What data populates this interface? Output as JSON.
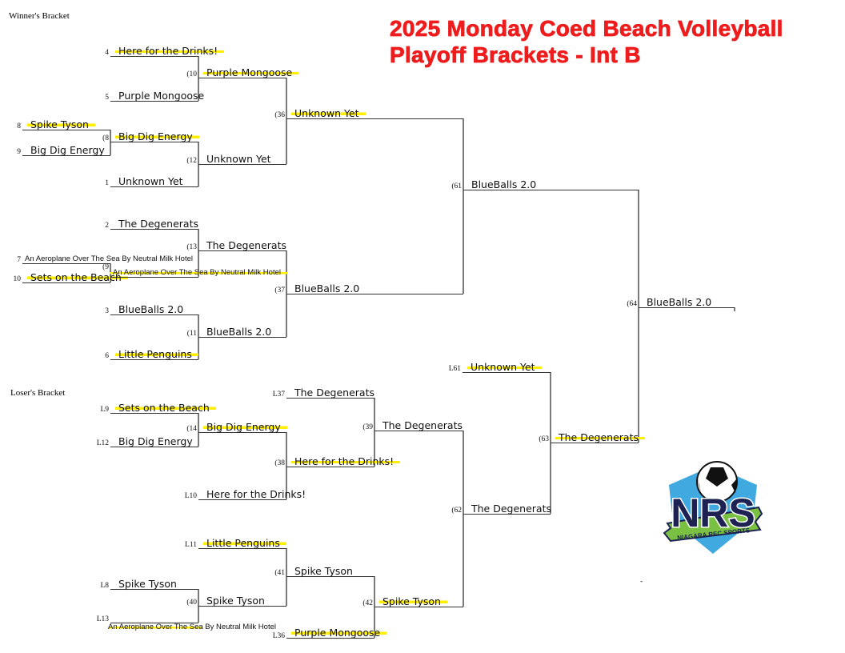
{
  "title": {
    "line1": "2025 Monday Coed Beach Volleyball",
    "line2": "Playoff Brackets - Int B"
  },
  "winners_label": "Winner's Bracket",
  "losers_label": "Loser's Bracket",
  "colors": {
    "title": "#ee1c1c",
    "highlight": "#ffee00",
    "logo_navy": "#1d2252",
    "logo_green": "#7ac143",
    "logo_blue": "#3fa9e0"
  },
  "logo": {
    "text": "NRS",
    "subtext": "NIAGARA REC SPORTS"
  },
  "footer_mark": "-",
  "slots": [
    {
      "label": "4",
      "team": "Here for the Drinks!",
      "crossed": true
    },
    {
      "label": "5",
      "team": "Purple Mongoose",
      "crossed": false
    },
    {
      "label": "(10",
      "team": "Purple Mongoose",
      "crossed": true
    },
    {
      "label": "8",
      "team": "Spike Tyson",
      "crossed": true
    },
    {
      "label": "9",
      "team": "Big Dig Energy",
      "crossed": false
    },
    {
      "label": "(8",
      "team": "Big Dig Energy",
      "crossed": true
    },
    {
      "label": "1",
      "team": "Unknown Yet",
      "crossed": false
    },
    {
      "label": "(12",
      "team": "Unknown Yet",
      "crossed": false
    },
    {
      "label": "(36",
      "team": "Unknown Yet",
      "crossed": true
    },
    {
      "label": "2",
      "team": "The Degenerats",
      "crossed": false
    },
    {
      "label": "7",
      "team": "An Aeroplane Over The Sea By Neutral Milk Hotel",
      "crossed": false
    },
    {
      "label": "10",
      "team": "Sets on the Beach",
      "crossed": true
    },
    {
      "label": "(9",
      "team": "An Aeroplane Over The Sea By Neutral Milk Hotel",
      "crossed": true
    },
    {
      "label": "(13",
      "team": "The Degenerats",
      "crossed": false
    },
    {
      "label": "3",
      "team": "BlueBalls 2.0",
      "crossed": false
    },
    {
      "label": "6",
      "team": "Little Penguins",
      "crossed": true
    },
    {
      "label": "(11",
      "team": "BlueBalls 2.0",
      "crossed": false
    },
    {
      "label": "(37",
      "team": "BlueBalls 2.0",
      "crossed": false
    },
    {
      "label": "(61",
      "team": "BlueBalls 2.0",
      "crossed": false
    },
    {
      "label": "(64",
      "team": "BlueBalls 2.0",
      "crossed": false
    },
    {
      "label": "L9",
      "team": "Sets on the Beach",
      "crossed": true
    },
    {
      "label": "L12",
      "team": "Big Dig Energy",
      "crossed": false
    },
    {
      "label": "(14",
      "team": "Big Dig Energy",
      "crossed": true
    },
    {
      "label": "L10",
      "team": "Here for the Drinks!",
      "crossed": false
    },
    {
      "label": "(38",
      "team": "Here for the Drinks!",
      "crossed": true
    },
    {
      "label": "L37",
      "team": "The Degenerats",
      "crossed": false
    },
    {
      "label": "(39",
      "team": "The Degenerats",
      "crossed": false
    },
    {
      "label": "L11",
      "team": "Little Penguins",
      "crossed": true
    },
    {
      "label": "L8",
      "team": "Spike Tyson",
      "crossed": false
    },
    {
      "label": "L13",
      "team": "",
      "crossed": false
    },
    {
      "label": "(40",
      "team": "Spike Tyson",
      "crossed": false
    },
    {
      "label": "(41",
      "team": "Spike Tyson",
      "crossed": false
    },
    {
      "label": "L36",
      "team": "Purple Mongoose",
      "crossed": true
    },
    {
      "label": "(42",
      "team": "Spike Tyson",
      "crossed": true
    },
    {
      "label": "(62",
      "team": "The Degenerats",
      "crossed": false
    },
    {
      "label": "L61",
      "team": "Unknown Yet",
      "crossed": true
    },
    {
      "label": "(63",
      "team": "The Degenerats",
      "crossed": true
    }
  ],
  "l13_team": {
    "crossed_part": "An Aeroplane Over The Sea",
    "rest": " By Neutral Milk Hotel"
  }
}
